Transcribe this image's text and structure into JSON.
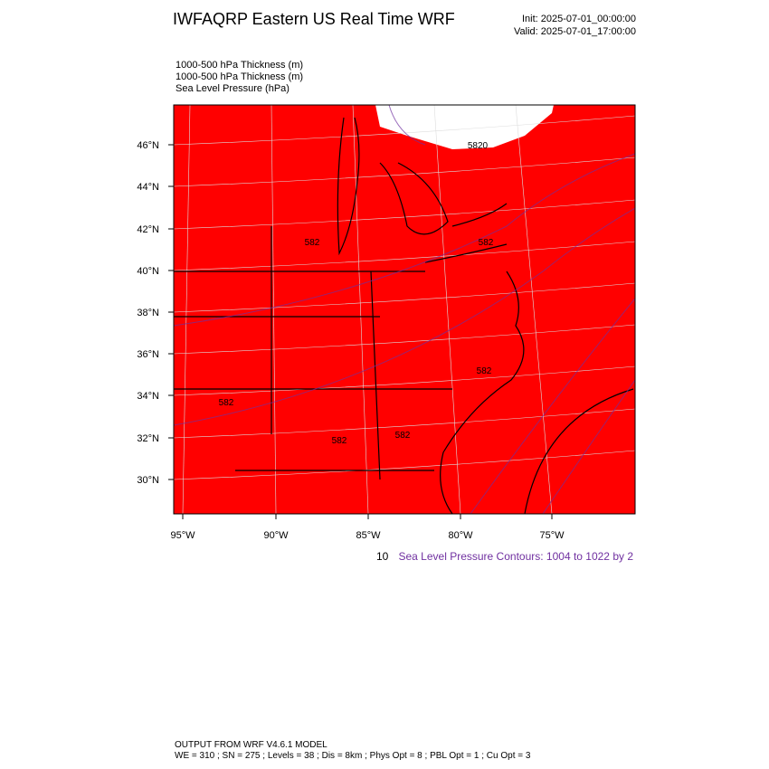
{
  "header": {
    "title": "IWFAQRP Eastern US Real Time WRF",
    "init": "Init: 2025-07-01_00:00:00",
    "valid": "Valid: 2025-07-01_17:00:00"
  },
  "fields": [
    "1000-500 hPa Thickness   (m)",
    "1000-500 hPa Thickness   (m)",
    "Sea Level Pressure   (hPa)"
  ],
  "map": {
    "lat_labels": [
      "46°N",
      "44°N",
      "42°N",
      "40°N",
      "38°N",
      "36°N",
      "34°N",
      "32°N",
      "30°N"
    ],
    "lon_labels": [
      "95°W",
      "90°W",
      "85°W",
      "80°W",
      "75°W"
    ],
    "contour_labels": [
      "5820",
      "582",
      "582",
      "582",
      "582",
      "582",
      "582"
    ]
  },
  "contour_info": {
    "thickness_fragment": "10",
    "pressure": "Sea Level Pressure Contours: 1004 to 1022 by 2"
  },
  "footer": {
    "line1": "OUTPUT FROM WRF V4.6.1 MODEL",
    "line2": "WE = 310 ; SN = 275 ; Levels = 38 ; Dis = 8km ; Phys Opt = 8 ; PBL Opt = 1 ; Cu Opt = 3"
  }
}
